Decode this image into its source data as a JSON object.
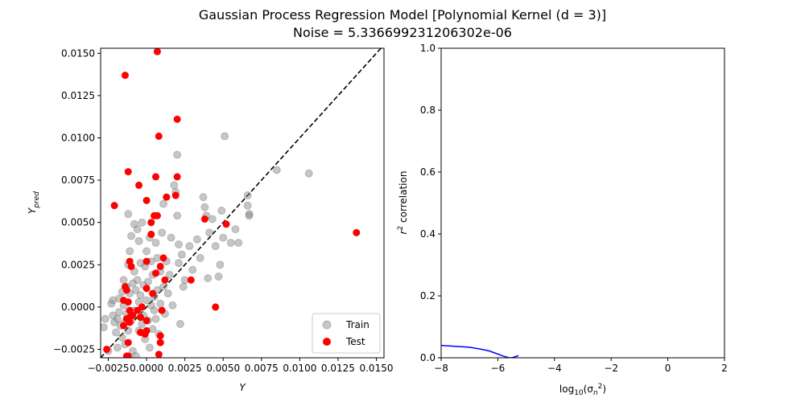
{
  "figure": {
    "title_line1": "Gaussian Process Regression Model [Polynomial Kernel (d = 3)]",
    "title_line2": "Noise = 5.336699231206302e-06"
  },
  "chart_data": [
    {
      "type": "scatter",
      "xlabel": "Y",
      "ylabel": "Y_pred",
      "xlim": [
        -0.003,
        0.0155
      ],
      "ylim": [
        -0.003,
        0.0153
      ],
      "xticks": [
        "−0.0025",
        "0.0000",
        "0.0025",
        "0.0050",
        "0.0075",
        "0.0100",
        "0.0125",
        "0.0150"
      ],
      "xtick_values": [
        -0.0025,
        0.0,
        0.0025,
        0.005,
        0.0075,
        0.01,
        0.0125,
        0.015
      ],
      "yticks": [
        "−0.0025",
        "0.0000",
        "0.0025",
        "0.0050",
        "0.0075",
        "0.0100",
        "0.0125",
        "0.0150"
      ],
      "ytick_values": [
        -0.0025,
        0.0,
        0.0025,
        0.005,
        0.0075,
        0.01,
        0.0125,
        0.015
      ],
      "identity_line": true,
      "legend_position": "lower-right",
      "colors": {
        "train": "#808080",
        "test": "#ff0000",
        "identity": "#000000"
      },
      "series": [
        {
          "name": "Train",
          "points": [
            [
              -0.0028,
              -0.0012
            ],
            [
              -0.0027,
              -0.0007
            ],
            [
              -0.0025,
              -0.0026
            ],
            [
              -0.0023,
              0.0002
            ],
            [
              -0.0022,
              -0.0005
            ],
            [
              -0.0022,
              0.0004
            ],
            [
              -0.0021,
              -0.0009
            ],
            [
              -0.002,
              -0.0015
            ],
            [
              -0.0019,
              -0.0007
            ],
            [
              -0.0019,
              -0.0024
            ],
            [
              -0.0018,
              0.0005
            ],
            [
              -0.0018,
              -0.0003
            ],
            [
              -0.0017,
              -0.0011
            ],
            [
              -0.0016,
              0.0009
            ],
            [
              -0.0016,
              -0.0018
            ],
            [
              -0.0015,
              0.0016
            ],
            [
              -0.0015,
              0.0001
            ],
            [
              -0.0014,
              -0.0009
            ],
            [
              -0.0014,
              -0.0022
            ],
            [
              -0.0013,
              0.0012
            ],
            [
              -0.0013,
              -0.0004
            ],
            [
              -0.0012,
              0.0025
            ],
            [
              -0.0012,
              0.0055
            ],
            [
              -0.0012,
              -0.0014
            ],
            [
              -0.0011,
              0.0008
            ],
            [
              -0.0011,
              0.0033
            ],
            [
              -0.001,
              0.0042
            ],
            [
              -0.001,
              -0.0008
            ],
            [
              -0.0009,
              0.0014
            ],
            [
              -0.0009,
              -0.0026
            ],
            [
              -0.0008,
              0.0021
            ],
            [
              -0.0008,
              0.0049
            ],
            [
              -0.0008,
              -0.0002
            ],
            [
              -0.0007,
              0.001
            ],
            [
              -0.0007,
              -0.0029
            ],
            [
              -0.0006,
              0.0046
            ],
            [
              -0.0006,
              0.0016
            ],
            [
              -0.0005,
              0.0039
            ],
            [
              -0.0005,
              0.0003
            ],
            [
              -0.0005,
              -0.0014
            ],
            [
              -0.0004,
              0.0026
            ],
            [
              -0.0004,
              0.0007
            ],
            [
              -0.0003,
              -0.001
            ],
            [
              -0.0003,
              0.005
            ],
            [
              -0.0002,
              0.0013
            ],
            [
              -0.0002,
              -0.0005
            ],
            [
              -0.0001,
              0.0024
            ],
            [
              -0.0001,
              -0.0019
            ],
            [
              0.0,
              0.0033
            ],
            [
              0.0,
              0.0004
            ],
            [
              0.0001,
              -0.0008
            ],
            [
              0.0001,
              0.0015
            ],
            [
              0.0002,
              0.0041
            ],
            [
              0.0002,
              -0.0024
            ],
            [
              0.0003,
              0.0027
            ],
            [
              0.0003,
              0.0001
            ],
            [
              0.0004,
              -0.0013
            ],
            [
              0.0004,
              0.0019
            ],
            [
              0.0005,
              0.0006
            ],
            [
              0.0005,
              -0.0002
            ],
            [
              0.0006,
              0.0038
            ],
            [
              0.0006,
              -0.0007
            ],
            [
              0.0007,
              0.0029
            ],
            [
              0.0007,
              0.001
            ],
            [
              0.0008,
              -0.0016
            ],
            [
              0.0009,
              0.0021
            ],
            [
              0.0009,
              0.0002
            ],
            [
              0.001,
              0.0044
            ],
            [
              0.0011,
              0.0061
            ],
            [
              0.0011,
              0.0012
            ],
            [
              0.0012,
              -0.0004
            ],
            [
              0.0013,
              0.0027
            ],
            [
              0.0014,
              0.0008
            ],
            [
              0.0015,
              0.0019
            ],
            [
              0.0016,
              0.0041
            ],
            [
              0.0017,
              0.0001
            ],
            [
              0.0018,
              0.0072
            ],
            [
              0.0019,
              0.0068
            ],
            [
              0.002,
              0.009
            ],
            [
              0.002,
              0.0054
            ],
            [
              0.0021,
              0.0026
            ],
            [
              0.0021,
              0.0037
            ],
            [
              0.0022,
              -0.001
            ],
            [
              0.0023,
              0.0031
            ],
            [
              0.0024,
              0.0012
            ],
            [
              0.0025,
              0.0016
            ],
            [
              0.0028,
              0.0036
            ],
            [
              0.003,
              0.0022
            ],
            [
              0.0033,
              0.004
            ],
            [
              0.0035,
              0.0029
            ],
            [
              0.0037,
              0.0065
            ],
            [
              0.0038,
              0.0059
            ],
            [
              0.0039,
              0.0054
            ],
            [
              0.004,
              0.0017
            ],
            [
              0.0041,
              0.0044
            ],
            [
              0.0043,
              0.0052
            ],
            [
              0.0045,
              0.0036
            ],
            [
              0.0047,
              0.0018
            ],
            [
              0.0048,
              0.0025
            ],
            [
              0.0049,
              0.0057
            ],
            [
              0.005,
              0.0041
            ],
            [
              0.0051,
              0.0101
            ],
            [
              0.0055,
              0.0038
            ],
            [
              0.0058,
              0.0046
            ],
            [
              0.006,
              0.0038
            ],
            [
              0.0066,
              0.0066
            ],
            [
              0.0066,
              0.006
            ],
            [
              0.0067,
              0.0055
            ],
            [
              0.0085,
              0.0081
            ],
            [
              0.0106,
              0.0079
            ],
            [
              0.0067,
              0.0054
            ]
          ]
        },
        {
          "name": "Test",
          "points": [
            [
              0.0007,
              0.0151
            ],
            [
              -0.0014,
              0.0137
            ],
            [
              0.002,
              0.0111
            ],
            [
              0.0008,
              0.0101
            ],
            [
              -0.0012,
              0.008
            ],
            [
              0.0006,
              0.0077
            ],
            [
              0.002,
              0.0077
            ],
            [
              -0.0005,
              0.0072
            ],
            [
              0.0013,
              0.0065
            ],
            [
              0.0019,
              0.0066
            ],
            [
              -0.0021,
              0.006
            ],
            [
              0.0,
              0.0063
            ],
            [
              0.0005,
              0.0054
            ],
            [
              0.0007,
              0.0054
            ],
            [
              0.0003,
              0.005
            ],
            [
              0.0038,
              0.0052
            ],
            [
              0.0052,
              0.0049
            ],
            [
              0.0003,
              0.0043
            ],
            [
              0.0137,
              0.0044
            ],
            [
              0.0011,
              0.0029
            ],
            [
              -0.0011,
              0.0027
            ],
            [
              0.0009,
              0.0024
            ],
            [
              0.0,
              0.0027
            ],
            [
              -0.001,
              0.0024
            ],
            [
              0.0006,
              0.002
            ],
            [
              0.0029,
              0.0016
            ],
            [
              0.0012,
              0.0016
            ],
            [
              -0.0014,
              0.0012
            ],
            [
              -0.0013,
              0.001
            ],
            [
              0.0,
              0.0011
            ],
            [
              0.0004,
              0.0008
            ],
            [
              -0.0015,
              0.0004
            ],
            [
              -0.0012,
              0.0003
            ],
            [
              -0.0003,
              0.0
            ],
            [
              0.001,
              -0.0002
            ],
            [
              0.0045,
              0.0
            ],
            [
              -0.0011,
              -0.0002
            ],
            [
              -0.0006,
              -0.0002
            ],
            [
              -0.0011,
              -0.0006
            ],
            [
              -0.0013,
              -0.0007
            ],
            [
              -0.0009,
              -0.0005
            ],
            [
              -0.0004,
              -0.0006
            ],
            [
              0.0,
              -0.0008
            ],
            [
              -0.0015,
              -0.0011
            ],
            [
              -0.0011,
              -0.0009
            ],
            [
              0.0,
              -0.0014
            ],
            [
              -0.0004,
              -0.0015
            ],
            [
              -0.0001,
              -0.0016
            ],
            [
              0.0009,
              -0.0017
            ],
            [
              -0.0012,
              -0.0021
            ],
            [
              0.0009,
              -0.0021
            ],
            [
              -0.0026,
              -0.0025
            ],
            [
              -0.0013,
              -0.0029
            ],
            [
              -0.0012,
              -0.0029
            ],
            [
              0.0008,
              -0.0028
            ]
          ]
        }
      ]
    },
    {
      "type": "line",
      "xlabel": "log10(σn²)",
      "ylabel": "r² correlation",
      "xlim": [
        -8,
        2
      ],
      "ylim": [
        0,
        1
      ],
      "xticks": [
        "−8",
        "−6",
        "−4",
        "−2",
        "0",
        "2"
      ],
      "xtick_values": [
        -8,
        -6,
        -4,
        -2,
        0,
        2
      ],
      "yticks": [
        "0.0",
        "0.2",
        "0.4",
        "0.6",
        "0.8",
        "1.0"
      ],
      "ytick_values": [
        0,
        0.2,
        0.4,
        0.6,
        0.8,
        1.0
      ],
      "color": "#0000ff",
      "series": [
        {
          "x": [
            -8.0,
            -7.5,
            -7.0,
            -6.6,
            -6.3,
            -6.0,
            -5.8,
            -5.6,
            -5.5,
            -5.4,
            -5.27
          ],
          "y": [
            0.04,
            0.037,
            0.034,
            0.028,
            0.022,
            0.012,
            0.005,
            0.0,
            0.0,
            0.003,
            0.007
          ]
        }
      ]
    }
  ]
}
